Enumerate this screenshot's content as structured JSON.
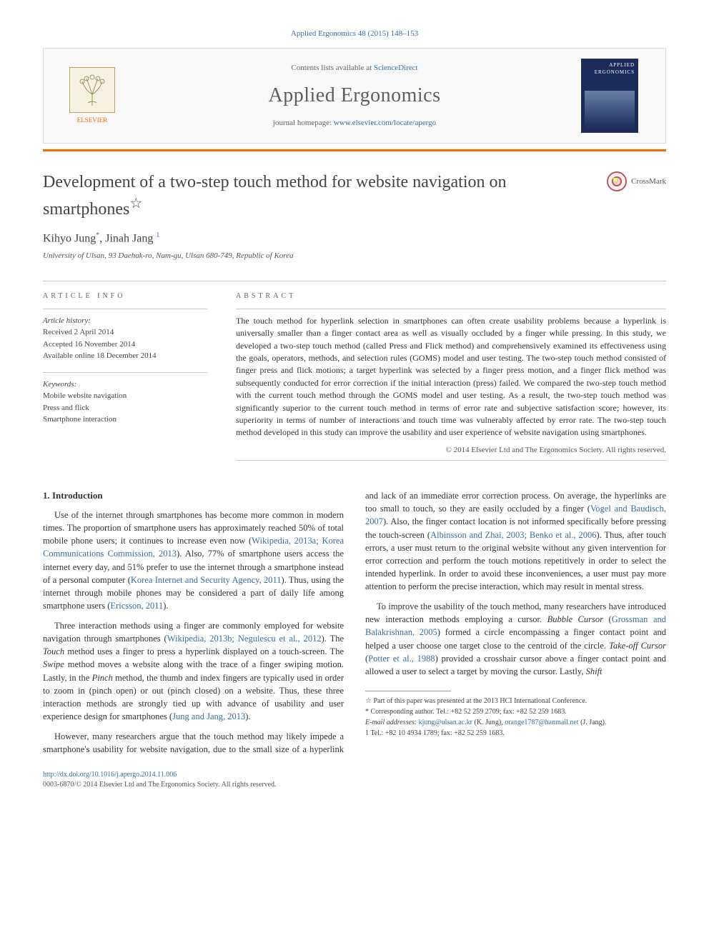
{
  "citation": "Applied Ergonomics 48 (2015) 148–153",
  "banner": {
    "publisher": "ELSEVIER",
    "contents_prefix": "Contents lists available at ",
    "contents_link": "ScienceDirect",
    "journal_title": "Applied Ergonomics",
    "homepage_prefix": "journal homepage: ",
    "homepage_url": "www.elsevier.com/locate/apergo",
    "cover_label": "APPLIED ERGONOMICS",
    "accent_color": "#ff6a00",
    "cover_bg": "#1a2a5a"
  },
  "crossmark_label": "CrossMark",
  "title": "Development of a two-step touch method for website navigation on smartphones",
  "title_note": "☆",
  "authors_html": "Kihyo Jung<sup>*</sup>, Jinah Jang <sup>1</sup>",
  "affiliation": "University of Ulsan, 93 Daehak-ro, Nam-gu, Ulsan 680-749, Republic of Korea",
  "info_head": "ARTICLE INFO",
  "abstract_head": "ABSTRACT",
  "history": {
    "label": "Article history:",
    "received": "Received 2 April 2014",
    "accepted": "Accepted 16 November 2014",
    "online": "Available online 18 December 2014"
  },
  "keywords": {
    "label": "Keywords:",
    "items": [
      "Mobile website navigation",
      "Press and flick",
      "Smartphone interaction"
    ]
  },
  "abstract": "The touch method for hyperlink selection in smartphones can often create usability problems because a hyperlink is universally smaller than a finger contact area as well as visually occluded by a finger while pressing. In this study, we developed a two-step touch method (called Press and Flick method) and comprehensively examined its effectiveness using the goals, operators, methods, and selection rules (GOMS) model and user testing. The two-step touch method consisted of finger press and flick motions; a target hyperlink was selected by a finger press motion, and a finger flick method was subsequently conducted for error correction if the initial interaction (press) failed. We compared the two-step touch method with the current touch method through the GOMS model and user testing. As a result, the two-step touch method was significantly superior to the current touch method in terms of error rate and subjective satisfaction score; however, its superiority in terms of number of interactions and touch time was vulnerably affected by error rate. The two-step touch method developed in this study can improve the usability and user experience of website navigation using smartphones.",
  "copyright": "© 2014 Elsevier Ltd and The Ergonomics Society. All rights reserved.",
  "section_heading": "1. Introduction",
  "intro": {
    "p1a": "Use of the internet through smartphones has become more common in modern times. The proportion of smartphone users has approximately reached 50% of total mobile phone users; it continues to increase even now (",
    "p1_cite1": "Wikipedia, 2013a; Korea Communications Commission, 2013",
    "p1b": "). Also, 77% of smartphone users access the internet every day, and 51% prefer to use the internet through a smartphone instead of a personal computer (",
    "p1_cite2": "Korea Internet and Security Agency, 2011",
    "p1c": "). Thus, using the internet through mobile phones may be considered a part of daily life among smartphone users (",
    "p1_cite3": "Ericsson, 2011",
    "p1d": ").",
    "p2a": "Three interaction methods using a finger are commonly employed for website navigation through smartphones (",
    "p2_cite1": "Wikipedia, 2013b; Negulescu et al., 2012",
    "p2b": "). The ",
    "p2_touch": "Touch",
    "p2c": " method uses a finger to press a hyperlink displayed on a touch-screen. The ",
    "p2_swipe": "Swipe",
    "p2d": " method moves a website along with the trace of a finger swiping motion. Lastly, in the ",
    "p2_pinch": "Pinch",
    "p2e": " method, the thumb and index fingers are typically used in order to zoom in (pinch open) or out (pinch closed) on a website. Thus, these three interaction methods are strongly tied up with advance of usability and user experience design for smartphones (",
    "p2_cite2": "Jung and Jang, 2013",
    "p2f": ").",
    "p3a": "However, many researchers argue that the touch method may likely impede a smartphone's usability for website navigation, due to the small size of a hyperlink and lack of an immediate error correction process. On average, the hyperlinks are too small to touch, so they are easily occluded by a finger (",
    "p3_cite1": "Vogel and Baudisch, 2007",
    "p3b": "). Also, the finger contact location is not informed specifically before pressing the touch-screen (",
    "p3_cite2": "Albinsson and Zhai, 2003; Benko et al., 2006",
    "p3c": "). Thus, after touch errors, a user must return to the original website without any given intervention for error correction and perform the touch motions repetitively in order to select the intended hyperlink. In order to avoid these inconveniences, a user must pay more attention to perform the precise interaction, which may result in mental stress.",
    "p4a": "To improve the usability of the touch method, many researchers have introduced new interaction methods employing a cursor. ",
    "p4_bubble": "Bubble Cursor",
    "p4b": " (",
    "p4_cite1": "Grossman and Balakrishnan, 2005",
    "p4c": ") formed a circle encompassing a finger contact point and helped a user choose one target close to the centroid of the circle. ",
    "p4_takeoff": "Take-off Cursor",
    "p4d": " (",
    "p4_cite2": "Potter et al., 1988",
    "p4e": ") provided a crosshair cursor above a finger contact point and allowed a user to select a target by moving the cursor. Lastly, ",
    "p4_shift": "Shift"
  },
  "footnotes": {
    "star": "☆ Part of this paper was presented at the 2013 HCI International Conference.",
    "corr": "* Corresponding author. Tel.: +82 52 259 2709; fax: +82 52 259 1683.",
    "email_label": "E-mail addresses: ",
    "email1": "kjung@ulsan.ac.kr",
    "email1_who": " (K. Jung), ",
    "email2": "orange1787@hanmail.net",
    "email2_who": " (J. Jang).",
    "one": "1  Tel.: +82 10 4934 1789; fax: +82 52 259 1683."
  },
  "doi": {
    "url": "http://dx.doi.org/10.1016/j.apergo.2014.11.006",
    "issn": "0003-6870/© 2014 Elsevier Ltd and The Ergonomics Society. All rights reserved."
  },
  "colors": {
    "link": "#3a6ea5",
    "accent": "#ff6a00",
    "text": "#333333",
    "muted": "#666666"
  },
  "typography": {
    "body_font": "Georgia, Times New Roman, serif",
    "title_fontsize_pt": 18,
    "journal_title_fontsize_pt": 21,
    "body_fontsize_pt": 9.5,
    "abstract_fontsize_pt": 9
  }
}
